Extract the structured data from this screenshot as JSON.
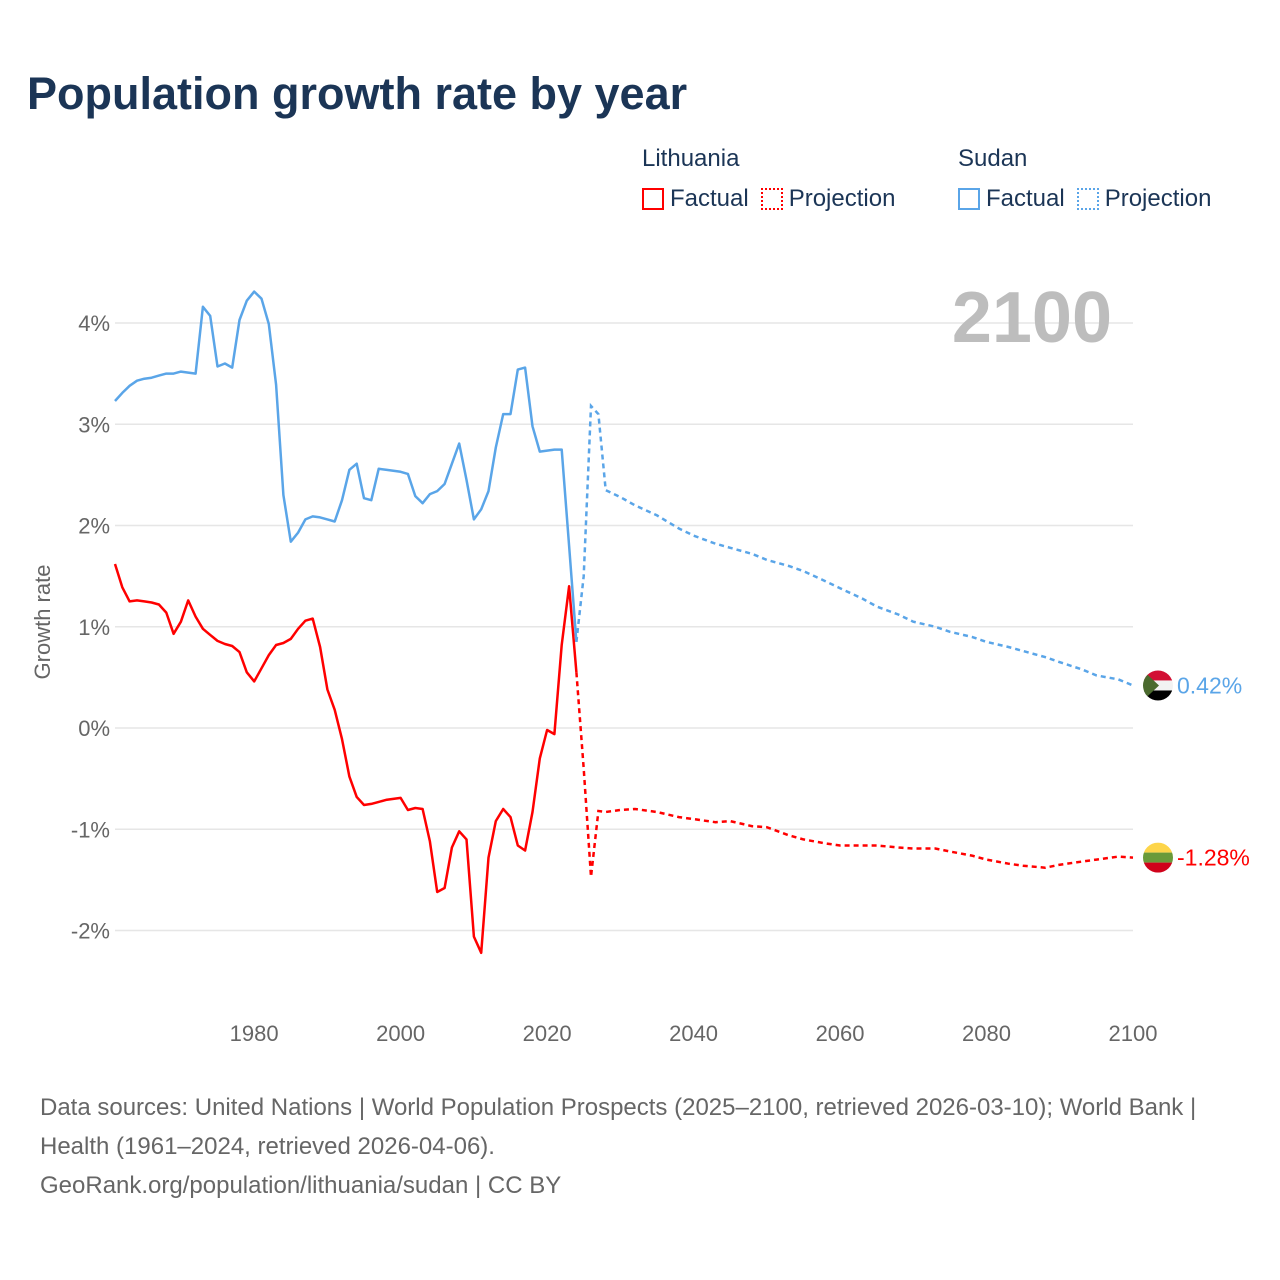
{
  "title": "Population growth rate by year",
  "legend": {
    "groups": [
      {
        "name": "Lithuania",
        "factual": "Factual",
        "projection": "Projection",
        "color": "#ff0000"
      },
      {
        "name": "Sudan",
        "factual": "Factual",
        "projection": "Projection",
        "color": "#5aa5e8"
      }
    ]
  },
  "year_overlay": "2100",
  "footer": {
    "sources": "Data sources: United Nations | World Population Prospects (2025–2100, retrieved 2026-03-10); World Bank | Health (1961–2024, retrieved 2026-04-06).",
    "credit": "GeoRank.org/population/lithuania/sudan | CC BY"
  },
  "chart_data": {
    "type": "line",
    "title": "Population growth rate by year",
    "xlabel": "",
    "ylabel": "Growth rate",
    "xlim": [
      1961,
      2100
    ],
    "ylim": [
      -2.7,
      4.5
    ],
    "x_ticks": [
      1980,
      2000,
      2020,
      2040,
      2060,
      2080,
      2100
    ],
    "x_tick_labels": [
      "1980",
      "2000",
      "2020",
      "2040",
      "2060",
      "2080",
      "2100"
    ],
    "y_ticks": [
      -2,
      -1,
      0,
      1,
      2,
      3,
      4
    ],
    "y_tick_labels": [
      "-2%",
      "-1%",
      "0%",
      "1%",
      "2%",
      "3%",
      "4%"
    ],
    "grid": true,
    "series": [
      {
        "name": "Lithuania",
        "color": "#ff0000",
        "end_label": "-1.28%",
        "flag": "lithuania-flag",
        "factual": {
          "x": [
            1961,
            1962,
            1963,
            1964,
            1965,
            1966,
            1967,
            1968,
            1969,
            1970,
            1971,
            1972,
            1973,
            1974,
            1975,
            1976,
            1977,
            1978,
            1979,
            1980,
            1981,
            1982,
            1983,
            1984,
            1985,
            1986,
            1987,
            1988,
            1989,
            1990,
            1991,
            1992,
            1993,
            1994,
            1995,
            1996,
            1997,
            1998,
            1999,
            2000,
            2001,
            2002,
            2003,
            2004,
            2005,
            2006,
            2007,
            2008,
            2009,
            2010,
            2011,
            2012,
            2013,
            2014,
            2015,
            2016,
            2017,
            2018,
            2019,
            2020,
            2021,
            2022,
            2023,
            2024
          ],
          "y": [
            1.62,
            1.39,
            1.25,
            1.26,
            1.25,
            1.24,
            1.22,
            1.14,
            0.93,
            1.05,
            1.26,
            1.1,
            0.98,
            0.92,
            0.86,
            0.83,
            0.81,
            0.75,
            0.55,
            0.46,
            0.59,
            0.72,
            0.82,
            0.84,
            0.88,
            0.98,
            1.06,
            1.08,
            0.8,
            0.38,
            0.18,
            -0.11,
            -0.48,
            -0.68,
            -0.76,
            -0.75,
            -0.73,
            -0.71,
            -0.7,
            -0.69,
            -0.81,
            -0.79,
            -0.8,
            -1.12,
            -1.62,
            -1.58,
            -1.18,
            -1.02,
            -1.1,
            -2.06,
            -2.22,
            -1.28,
            -0.92,
            -0.8,
            -0.88,
            -1.16,
            -1.21,
            -0.83,
            -0.3,
            -0.02,
            -0.06,
            0.82,
            1.4,
            0.55
          ]
        },
        "projection": {
          "x": [
            2024,
            2025,
            2026,
            2027,
            2028,
            2030,
            2032,
            2035,
            2038,
            2040,
            2043,
            2045,
            2048,
            2050,
            2053,
            2055,
            2058,
            2060,
            2063,
            2065,
            2068,
            2070,
            2073,
            2075,
            2078,
            2080,
            2083,
            2085,
            2088,
            2090,
            2093,
            2095,
            2098,
            2100
          ],
          "y": [
            0.55,
            -0.4,
            -1.47,
            -0.82,
            -0.83,
            -0.81,
            -0.8,
            -0.83,
            -0.88,
            -0.9,
            -0.93,
            -0.92,
            -0.97,
            -0.98,
            -1.06,
            -1.1,
            -1.14,
            -1.16,
            -1.16,
            -1.16,
            -1.18,
            -1.19,
            -1.19,
            -1.22,
            -1.26,
            -1.3,
            -1.34,
            -1.36,
            -1.38,
            -1.35,
            -1.32,
            -1.3,
            -1.27,
            -1.28
          ]
        }
      },
      {
        "name": "Sudan",
        "color": "#5aa5e8",
        "end_label": "0.42%",
        "flag": "sudan-flag",
        "factual": {
          "x": [
            1961,
            1962,
            1963,
            1964,
            1965,
            1966,
            1967,
            1968,
            1969,
            1970,
            1971,
            1972,
            1973,
            1974,
            1975,
            1976,
            1977,
            1978,
            1979,
            1980,
            1981,
            1982,
            1983,
            1984,
            1985,
            1986,
            1987,
            1988,
            1989,
            1990,
            1991,
            1992,
            1993,
            1994,
            1995,
            1996,
            1997,
            1998,
            1999,
            2000,
            2001,
            2002,
            2003,
            2004,
            2005,
            2006,
            2007,
            2008,
            2009,
            2010,
            2011,
            2012,
            2013,
            2014,
            2015,
            2016,
            2017,
            2018,
            2019,
            2020,
            2021,
            2022,
            2023,
            2024
          ],
          "y": [
            3.23,
            3.31,
            3.38,
            3.43,
            3.45,
            3.46,
            3.48,
            3.5,
            3.5,
            3.52,
            3.51,
            3.5,
            4.16,
            4.07,
            3.57,
            3.6,
            3.56,
            4.03,
            4.22,
            4.31,
            4.24,
            3.99,
            3.39,
            2.3,
            1.84,
            1.93,
            2.06,
            2.09,
            2.08,
            2.06,
            2.04,
            2.25,
            2.55,
            2.61,
            2.27,
            2.25,
            2.56,
            2.55,
            2.54,
            2.53,
            2.51,
            2.29,
            2.22,
            2.31,
            2.34,
            2.41,
            2.61,
            2.81,
            2.45,
            2.06,
            2.16,
            2.34,
            2.77,
            3.1,
            3.1,
            3.54,
            3.56,
            2.98,
            2.73,
            2.74,
            2.75,
            2.75,
            1.8,
            0.85
          ]
        },
        "projection": {
          "x": [
            2024,
            2025,
            2026,
            2027,
            2028,
            2030,
            2032,
            2035,
            2038,
            2040,
            2043,
            2045,
            2048,
            2050,
            2053,
            2055,
            2058,
            2060,
            2063,
            2065,
            2068,
            2070,
            2073,
            2075,
            2078,
            2080,
            2083,
            2085,
            2088,
            2090,
            2093,
            2095,
            2098,
            2100
          ],
          "y": [
            0.85,
            1.5,
            3.18,
            3.1,
            2.35,
            2.28,
            2.2,
            2.1,
            1.97,
            1.9,
            1.82,
            1.78,
            1.72,
            1.66,
            1.6,
            1.55,
            1.45,
            1.38,
            1.28,
            1.2,
            1.12,
            1.05,
            1.0,
            0.95,
            0.9,
            0.85,
            0.8,
            0.76,
            0.7,
            0.65,
            0.58,
            0.52,
            0.48,
            0.42
          ]
        }
      }
    ]
  }
}
